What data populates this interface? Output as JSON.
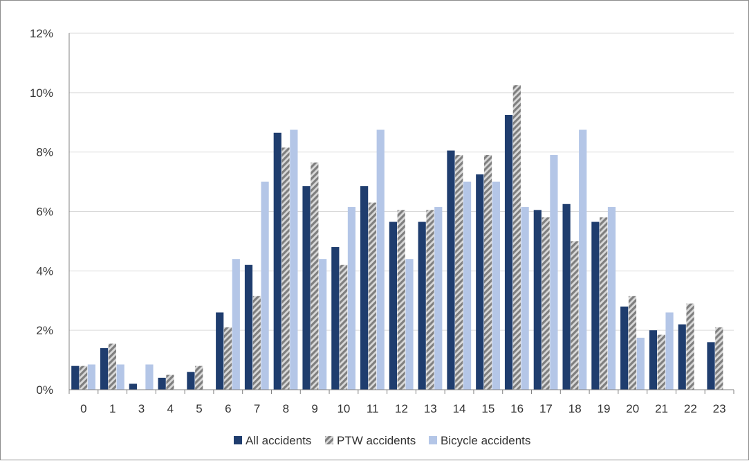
{
  "chart_data": {
    "type": "bar",
    "title": "",
    "xlabel": "",
    "ylabel": "",
    "categories": [
      "0",
      "1",
      "3",
      "4",
      "5",
      "6",
      "7",
      "8",
      "9",
      "10",
      "11",
      "12",
      "13",
      "14",
      "15",
      "16",
      "17",
      "18",
      "19",
      "20",
      "21",
      "22",
      "23"
    ],
    "ylim": [
      0,
      12
    ],
    "yticks": [
      "0%",
      "2%",
      "4%",
      "6%",
      "8%",
      "10%",
      "12%"
    ],
    "ytick_values": [
      0,
      2,
      4,
      6,
      8,
      10,
      12
    ],
    "grid": true,
    "legend_position": "bottom",
    "series": [
      {
        "name": "All accidents",
        "color": "#1f3d6e",
        "pattern": "solid",
        "values": [
          0.8,
          1.4,
          0.2,
          0.4,
          0.6,
          2.6,
          4.2,
          8.65,
          6.85,
          4.8,
          6.85,
          5.65,
          5.65,
          8.05,
          7.25,
          9.25,
          6.05,
          6.25,
          5.65,
          2.8,
          2.0,
          2.2,
          1.6
        ]
      },
      {
        "name": "PTW accidents",
        "color": "#7f7f7f",
        "pattern": "hatched",
        "values": [
          0.8,
          1.55,
          0.0,
          0.5,
          0.8,
          2.1,
          3.15,
          8.15,
          7.65,
          4.2,
          6.3,
          6.05,
          6.05,
          7.9,
          7.9,
          10.25,
          5.8,
          5.0,
          5.8,
          3.15,
          1.85,
          2.9,
          2.1
        ]
      },
      {
        "name": "Bicycle accidents",
        "color": "#b4c6e7",
        "pattern": "solid",
        "values": [
          0.85,
          0.85,
          0.85,
          0.0,
          0.0,
          4.4,
          7.0,
          8.75,
          4.4,
          6.15,
          8.75,
          4.4,
          6.15,
          7.0,
          7.0,
          6.15,
          7.9,
          8.75,
          6.15,
          1.75,
          2.6,
          0.0,
          0.0
        ]
      }
    ]
  }
}
